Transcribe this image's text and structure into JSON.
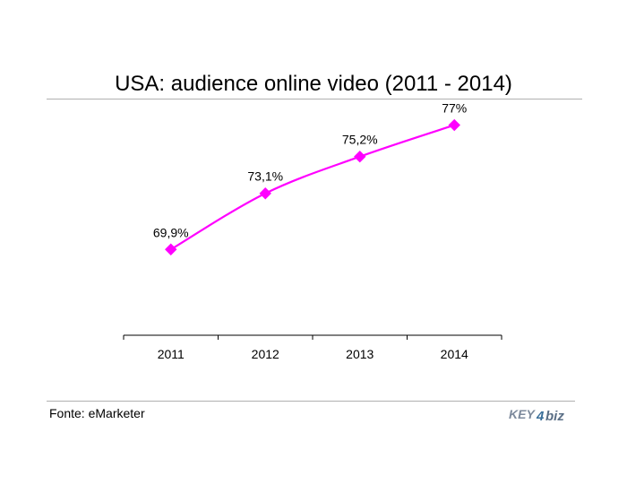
{
  "chart_data": {
    "type": "line",
    "title": "USA: audience online video (2011 - 2014)",
    "categories": [
      "2011",
      "2012",
      "2013",
      "2014"
    ],
    "series": [
      {
        "values": [
          69.9,
          73.1,
          75.2,
          77
        ],
        "color": "#ff00ff"
      }
    ],
    "data_labels": [
      "69,9%",
      "73,1%",
      "75,2%",
      "77%"
    ],
    "ylim": [
      65,
      78
    ],
    "grid": false,
    "legend": "none",
    "xlabel": "",
    "ylabel": ""
  },
  "footer": {
    "source": "Fonte: eMarketer",
    "logo_text": "KEY4biz"
  }
}
